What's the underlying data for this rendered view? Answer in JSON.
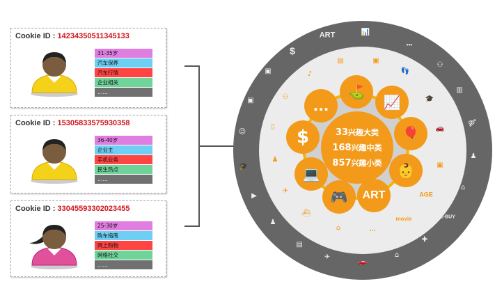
{
  "cookie_label": "Cookie ID : ",
  "profiles": [
    {
      "cookie_id": "14234350511345133",
      "gender": "male",
      "shirt_color": "#f5d21a",
      "tags": [
        "31-35岁",
        "汽车保养",
        "汽车行情",
        "企业相关",
        "……"
      ]
    },
    {
      "cookie_id": "15305833575930358",
      "gender": "male",
      "shirt_color": "#f5d21a",
      "tags": [
        "36-40岁",
        "企业主",
        "手机业务",
        "民生热点",
        "……"
      ]
    },
    {
      "cookie_id": "33045593302023455",
      "gender": "female",
      "shirt_color": "#e0509b",
      "tags": [
        "25-30岁",
        "购车指南",
        "网上购物",
        "网络社交",
        "……"
      ]
    }
  ],
  "tag_colors": [
    "#e07de0",
    "#6dcff3",
    "#ff4444",
    "#6fd49a",
    "#707070"
  ],
  "center": {
    "lines": [
      {
        "num": "33",
        "text": "兴趣大类"
      },
      {
        "num": "168",
        "text": "兴趣中类"
      },
      {
        "num": "857",
        "text": "兴趣小类"
      }
    ]
  },
  "bubbles": {
    "more": "...",
    "money": "$",
    "art": "ART"
  },
  "outer_labels": {
    "art": "ART",
    "more": "•••",
    "money": "$",
    "ebuy": "E-BUY"
  },
  "inner_labels": {
    "age": "AGE",
    "movie": "movie",
    "more": "..."
  },
  "colors": {
    "outer_ring": "#666666",
    "inner_disc": "#ececec",
    "accent": "#f39a1b",
    "ring_line": "#f5b400"
  }
}
